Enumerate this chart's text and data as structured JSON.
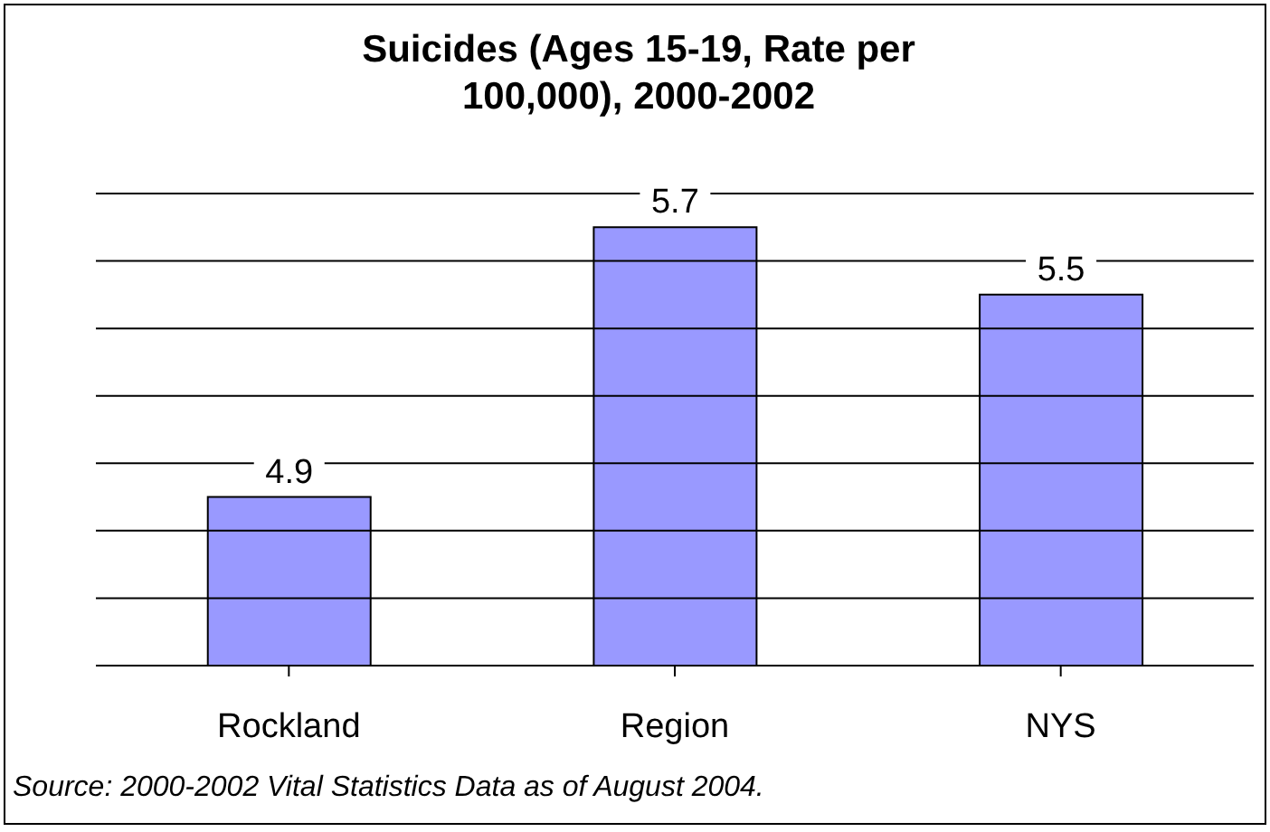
{
  "chart_data": {
    "type": "bar",
    "title": "Suicides (Ages 15-19, Rate per 100,000), 2000-2002",
    "categories": [
      "Rockland",
      "Region",
      "NYS"
    ],
    "values": [
      4.9,
      5.7,
      5.5
    ],
    "color": "#9999ff",
    "ylim": [
      4.4,
      5.8
    ],
    "yticks": [
      {
        "value": 4.4,
        "label": null
      },
      {
        "value": 4.6,
        "label": null
      },
      {
        "value": 4.8,
        "label": null
      },
      {
        "value": 5.0,
        "label": null
      },
      {
        "value": 5.2,
        "label": null
      },
      {
        "value": 5.4,
        "label": null
      },
      {
        "value": 5.6,
        "label": null
      },
      {
        "value": 5.8,
        "label": null
      }
    ],
    "tick_labels": "x",
    "grid": "y",
    "data_labels": true,
    "annotations": [
      "Source: 2000-2002 Vital Statistics Data as of August 2004."
    ]
  }
}
